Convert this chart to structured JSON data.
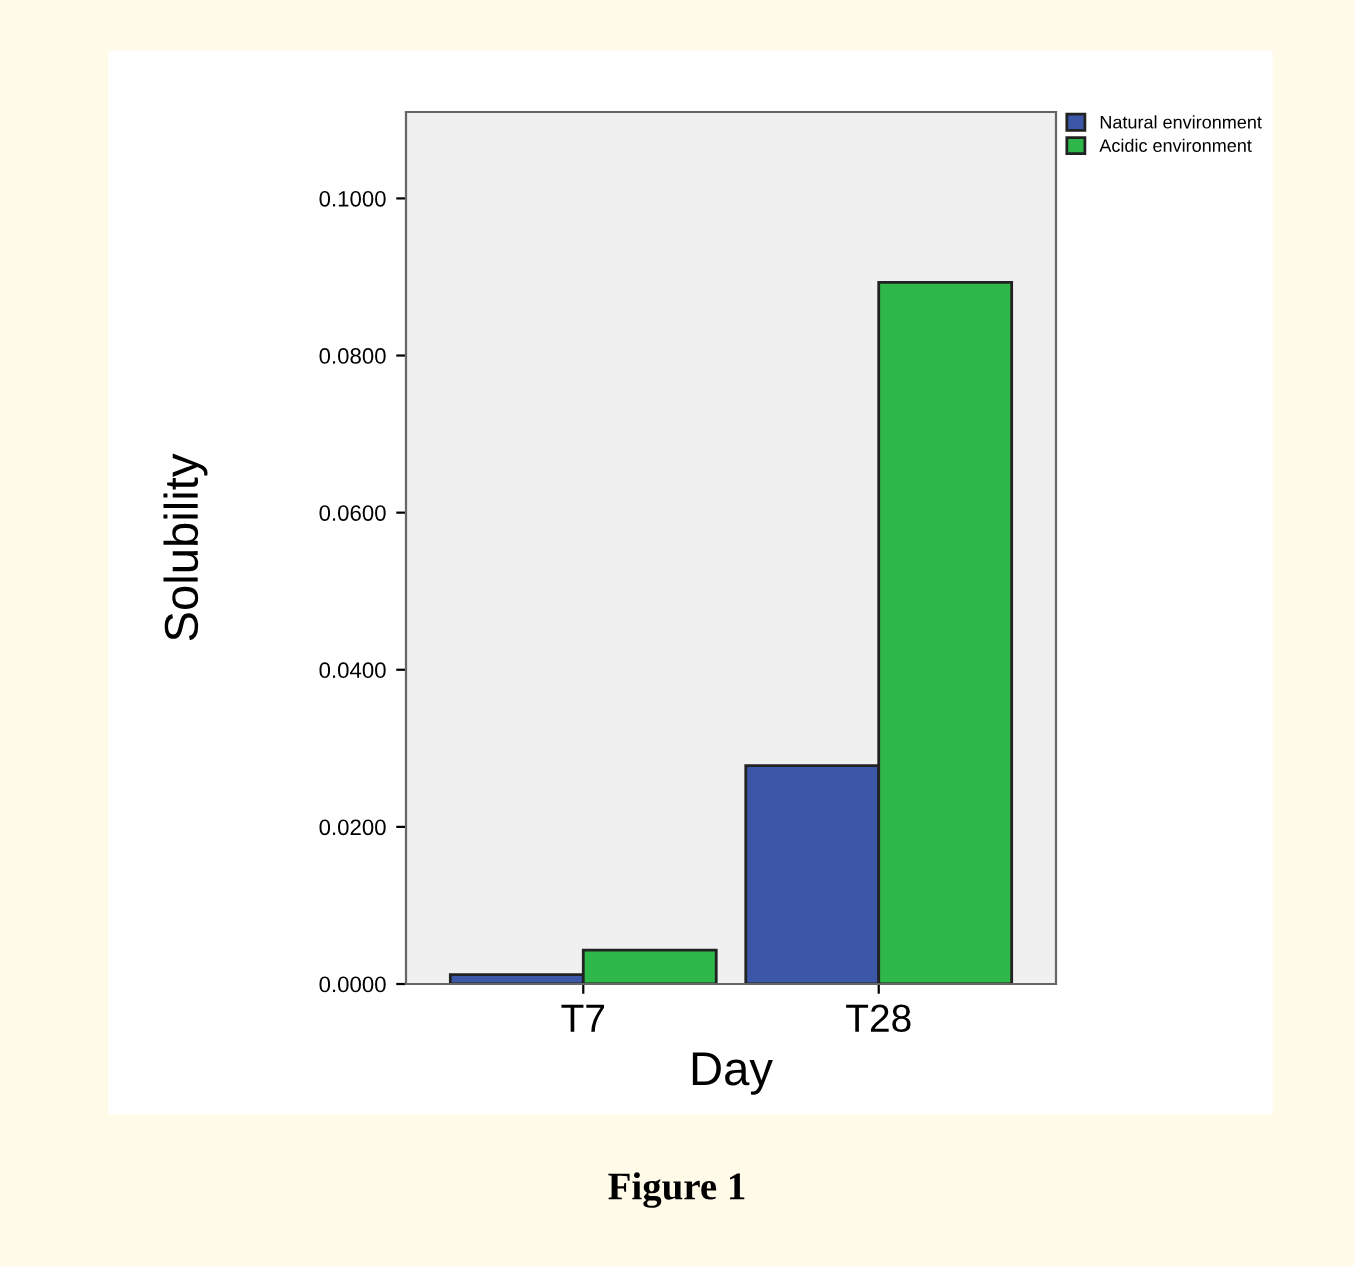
{
  "chart_data": {
    "type": "bar",
    "xlabel": "Day",
    "ylabel": "Solubility",
    "categories": [
      "T7",
      "T28"
    ],
    "series": [
      {
        "name": "Natural environment",
        "color": "#3c56a8",
        "values": [
          0.0012,
          0.0278
        ]
      },
      {
        "name": "Acidic environment",
        "color": "#2eb84a",
        "values": [
          0.0043,
          0.0893
        ]
      }
    ],
    "ylim": [
      0,
      0.111
    ],
    "yticks": [
      {
        "value": 0,
        "label": "0.0000"
      },
      {
        "value": 0.02,
        "label": "0.0200"
      },
      {
        "value": 0.04,
        "label": "0.0400"
      },
      {
        "value": 0.06,
        "label": "0.0600"
      },
      {
        "value": 0.08,
        "label": "0.0800"
      },
      {
        "value": 0.1,
        "label": "0.1000"
      }
    ],
    "grid": false,
    "legend": "top right",
    "annotations": [
      "Figure 1"
    ]
  }
}
